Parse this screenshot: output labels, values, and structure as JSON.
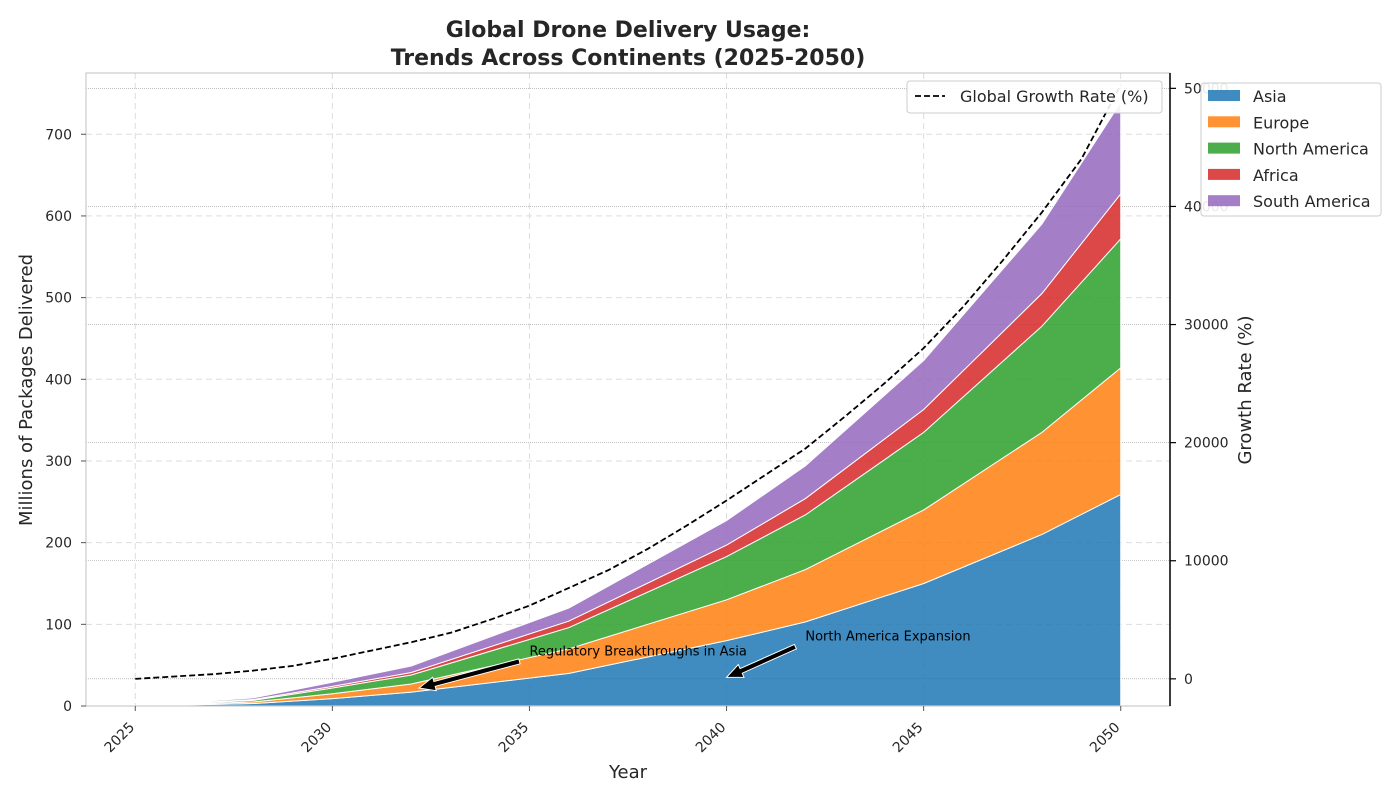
{
  "chart_data": {
    "type": "area",
    "title_lines": [
      "Global Drone Delivery Usage:",
      "Trends Across Continents (2025-2050)"
    ],
    "xlabel": "Year",
    "ylabel": "Millions of Packages Delivered",
    "y2label": "Growth Rate (%)",
    "xlim": [
      2023.75,
      2051.25
    ],
    "ylim": [
      0,
      775
    ],
    "y2lim": [
      -2300,
      51300
    ],
    "x_ticks": [
      2025,
      2030,
      2035,
      2040,
      2045,
      2050
    ],
    "y_ticks": [
      0,
      100,
      200,
      300,
      400,
      500,
      600,
      700
    ],
    "y2_ticks": [
      0,
      10000,
      20000,
      30000,
      40000,
      50000
    ],
    "x": [
      2025,
      2028,
      2030,
      2032,
      2036,
      2040,
      2042,
      2045,
      2048,
      2050
    ],
    "series": [
      {
        "name": "Asia",
        "color": "#1f77b4",
        "values": [
          0,
          3,
          9,
          17,
          40,
          80,
          103,
          150,
          210,
          259
        ]
      },
      {
        "name": "Europe",
        "color": "#ff7f0e",
        "values": [
          0,
          2,
          6,
          10,
          30,
          50,
          64,
          90,
          125,
          155
        ]
      },
      {
        "name": "North America",
        "color": "#2ca02c",
        "values": [
          0,
          2,
          7,
          11,
          26,
          53,
          67,
          95,
          130,
          158
        ]
      },
      {
        "name": "Africa",
        "color": "#d62728",
        "values": [
          0,
          1,
          2,
          3,
          8,
          14,
          20,
          28,
          40,
          55
        ]
      },
      {
        "name": "South America",
        "color": "#9467bd",
        "values": [
          0,
          2,
          5,
          8,
          16,
          30,
          40,
          60,
          85,
          112
        ]
      }
    ],
    "growth_series": {
      "name": "Global Growth Rate (%)",
      "color": "#000000",
      "x": [
        2025,
        2026,
        2027,
        2028,
        2029,
        2030,
        2031,
        2032,
        2033,
        2034,
        2035,
        2036,
        2037,
        2038,
        2039,
        2040,
        2041,
        2042,
        2043,
        2044,
        2045,
        2046,
        2047,
        2048,
        2049,
        2050
      ],
      "values": [
        0,
        200,
        400,
        700,
        1100,
        1700,
        2400,
        3100,
        3900,
        5000,
        6200,
        7700,
        9200,
        11000,
        13000,
        15100,
        17300,
        19500,
        22200,
        25000,
        28000,
        31500,
        35400,
        39500,
        44000,
        50300
      ]
    },
    "annotations": [
      {
        "text": "Regulatory Breakthroughs in Asia",
        "text_x": 2035,
        "text_y": 62,
        "arrow_x": 2032.2,
        "arrow_y": 22
      },
      {
        "text": "North America Expansion",
        "text_x": 2042,
        "text_y": 80,
        "arrow_x": 2040,
        "arrow_y": 35
      }
    ],
    "legend_primary": "right-outside",
    "legend_secondary": "top-right",
    "grid": true
  }
}
